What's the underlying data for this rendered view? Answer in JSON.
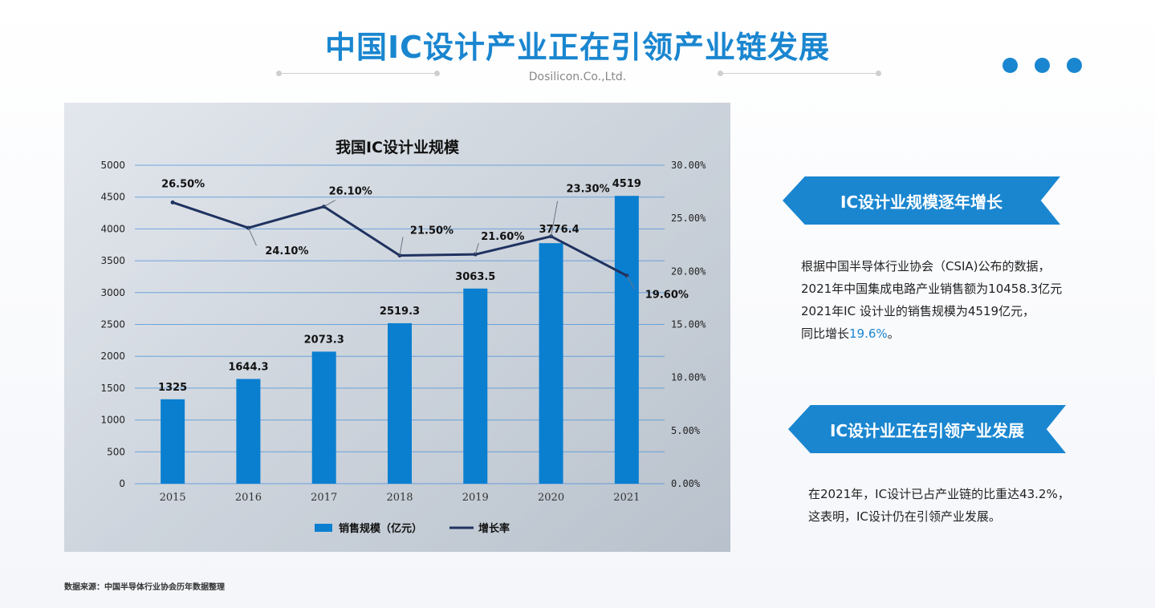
{
  "header": {
    "title": "中国IC设计产业正在引领产业链发展",
    "subtitle": "Dosilicon.Co.,Ltd.",
    "accent_color": "#1a86d0"
  },
  "chart_data": {
    "type": "bar",
    "title": "我国IC设计业规模",
    "categories": [
      "2015",
      "2016",
      "2017",
      "2018",
      "2019",
      "2020",
      "2021"
    ],
    "series": [
      {
        "name": "销售规模（亿元）",
        "type": "bar",
        "axis": "left",
        "values": [
          1325,
          1644.3,
          2073.3,
          2519.3,
          3063.5,
          3776.4,
          4519
        ],
        "labels": [
          "1325",
          "1644.3",
          "2073.3",
          "2519.3",
          "3063.5",
          "3776.4",
          "4519"
        ],
        "color": "#0a7fd0"
      },
      {
        "name": "增长率",
        "type": "line",
        "axis": "right",
        "values": [
          26.5,
          24.1,
          26.1,
          21.5,
          21.6,
          23.3,
          19.6
        ],
        "labels": [
          "26.50%",
          "24.10%",
          "26.10%",
          "21.50%",
          "21.60%",
          "23.30%",
          "19.60%"
        ],
        "color": "#1f3260"
      }
    ],
    "y_left": {
      "min": 0,
      "max": 5000,
      "ticks": [
        "0",
        "500",
        "1000",
        "1500",
        "2000",
        "2500",
        "3000",
        "3500",
        "4000",
        "4500",
        "5000"
      ]
    },
    "y_right": {
      "min": 0,
      "max": 30,
      "ticks": [
        "0.00%",
        "5.00%",
        "10.00%",
        "15.00%",
        "20.00%",
        "25.00%",
        "30.00%"
      ]
    },
    "grid": true,
    "legend": "bottom"
  },
  "sections": [
    {
      "banner": "IC设计业规模逐年增长",
      "lines": [
        "根据中国半导体行业协会（CSIA)公布的数据，",
        "2021年中国集成电路产业销售额为10458.3亿元",
        "2021年IC 设计业的销售规模为4519亿元，"
      ],
      "last_prefix": "同比增长",
      "highlight": "19.6%",
      "last_suffix": "。"
    },
    {
      "banner": "IC设计业正在引领产业发展",
      "lines": [
        "在2021年，IC设计已占产业链的比重达43.2%，",
        "这表明，IC设计仍在引领产业发展。"
      ]
    }
  ],
  "footer": {
    "source": "数据来源：中国半导体行业协会历年数据整理"
  }
}
